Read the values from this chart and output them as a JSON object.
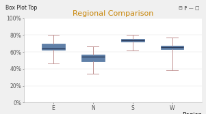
{
  "title": "Regional Comparison",
  "title_color": "#c8860a",
  "xlabel": "Region",
  "categories": [
    "E",
    "N",
    "S",
    "W"
  ],
  "box_data": {
    "E": {
      "whislo": 0.46,
      "q1": 0.625,
      "med": 0.645,
      "q3": 0.695,
      "whishi": 0.8
    },
    "N": {
      "whislo": 0.345,
      "q1": 0.49,
      "med": 0.545,
      "q3": 0.565,
      "whishi": 0.67
    },
    "S": {
      "whislo": 0.615,
      "q1": 0.72,
      "med": 0.735,
      "q3": 0.755,
      "whishi": 0.8
    },
    "W": {
      "whislo": 0.385,
      "q1": 0.635,
      "med": 0.655,
      "q3": 0.675,
      "whishi": 0.775
    }
  },
  "box_color": "#7b9ec5",
  "box_edge_color": "#6080a8",
  "median_color": "#2a3a5a",
  "whisker_color": "#c09090",
  "bg_color": "#f0f0f0",
  "plot_bg_color": "#ffffff",
  "header_bg_color": "#c8c8c8",
  "header_text": "Box Plot Top",
  "header_icons": "▤ ❘❘ – □",
  "ylim": [
    0,
    1.0
  ],
  "yticks": [
    0.0,
    0.2,
    0.4,
    0.6,
    0.8,
    1.0
  ],
  "ytick_labels": [
    "0%",
    "20%",
    "40%",
    "60%",
    "80%",
    "100%"
  ],
  "title_fontsize": 8,
  "tick_fontsize": 5.5,
  "label_fontsize": 6,
  "header_fontsize": 5.5
}
